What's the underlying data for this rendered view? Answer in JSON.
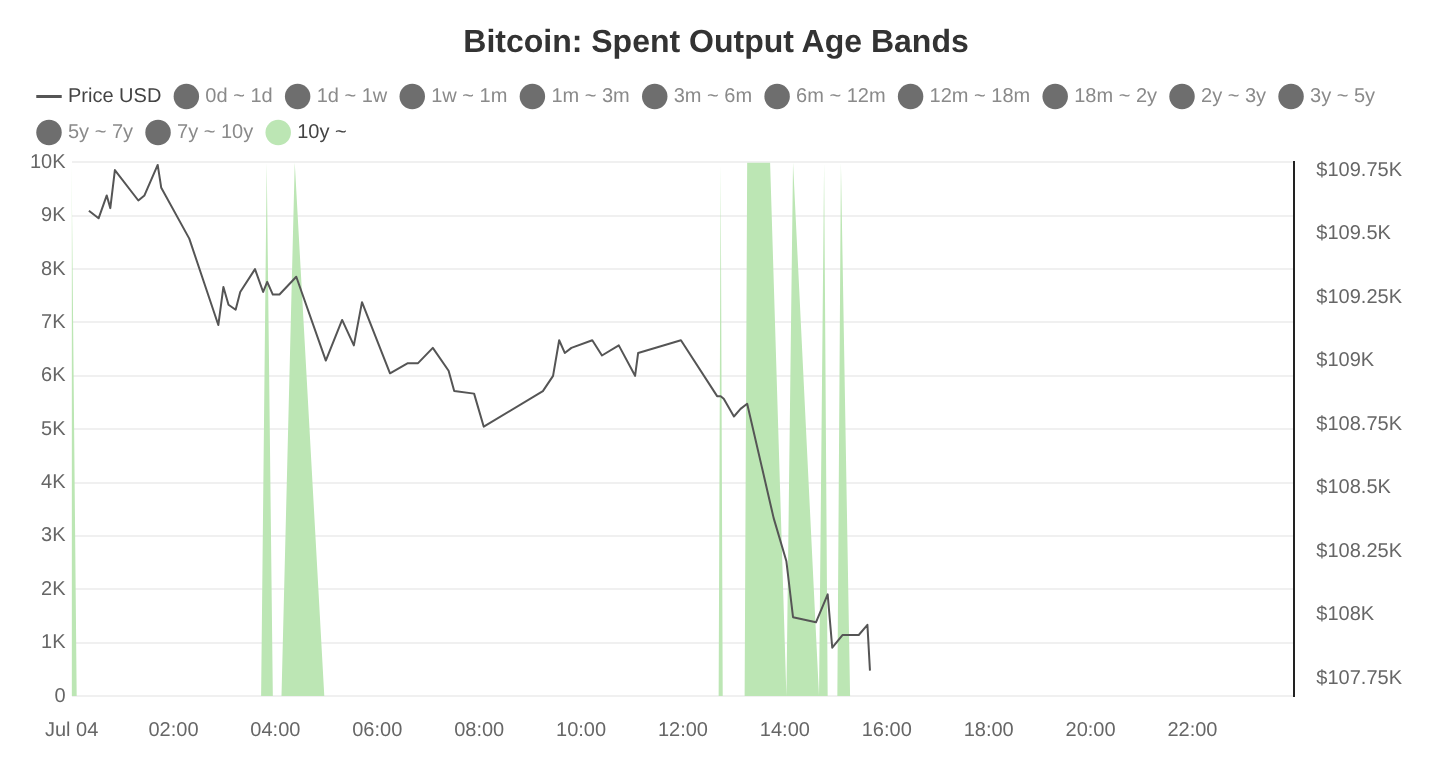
{
  "chart_data": {
    "type": "line",
    "title": "Bitcoin: Spent Output Age Bands",
    "legend": "top left",
    "grid": "y",
    "marker": "none",
    "xlim": [
      0,
      24
    ],
    "xticks": [
      {
        "value": 0,
        "label": "Jul 04"
      },
      {
        "value": 2,
        "label": "02:00"
      },
      {
        "value": 4,
        "label": "04:00"
      },
      {
        "value": 6,
        "label": "06:00"
      },
      {
        "value": 8,
        "label": "08:00"
      },
      {
        "value": 10,
        "label": "10:00"
      },
      {
        "value": 12,
        "label": "12:00"
      },
      {
        "value": 14,
        "label": "14:00"
      },
      {
        "value": 16,
        "label": "16:00"
      },
      {
        "value": 18,
        "label": "18:00"
      },
      {
        "value": 20,
        "label": "20:00"
      },
      {
        "value": 22,
        "label": "22:00"
      }
    ],
    "ylim": [
      0,
      10000
    ],
    "yticks": [
      0,
      {
        "value": 1000,
        "label": "1K"
      },
      {
        "value": 2000,
        "label": "2K"
      },
      {
        "value": 3000,
        "label": "3K"
      },
      {
        "value": 4000,
        "label": "4K"
      },
      {
        "value": 5000,
        "label": "5K"
      },
      {
        "value": 6000,
        "label": "6K"
      },
      {
        "value": 7000,
        "label": "7K"
      },
      {
        "value": 8000,
        "label": "8K"
      },
      {
        "value": 9000,
        "label": "9K"
      },
      {
        "value": 10000,
        "label": "10K"
      }
    ],
    "y2lim": [
      107680,
      109780
    ],
    "y2ticks": [
      {
        "value": 107750,
        "label": "$107.75K"
      },
      {
        "value": 108000,
        "label": "$108K"
      },
      {
        "value": 108250,
        "label": "$108.25K"
      },
      {
        "value": 108500,
        "label": "$108.5K"
      },
      {
        "value": 108750,
        "label": "$108.75K"
      },
      {
        "value": 109000,
        "label": "$109K"
      },
      {
        "value": 109250,
        "label": "$109.25K"
      },
      {
        "value": 109500,
        "label": "$109.5K"
      },
      {
        "value": 109750,
        "label": "$109.75K"
      }
    ],
    "series": [
      {
        "name": "Price USD",
        "type": "line",
        "axis": "y2",
        "color": "#555555",
        "x": [
          0.34,
          0.53,
          0.69,
          0.76,
          0.85,
          1.31,
          1.43,
          1.69,
          1.76,
          2.31,
          2.88,
          2.98,
          3.08,
          3.22,
          3.31,
          3.6,
          3.76,
          3.84,
          3.95,
          4.08,
          4.41,
          4.99,
          5.31,
          5.54,
          5.7,
          6.25,
          6.6,
          6.8,
          7.09,
          7.4,
          7.51,
          7.9,
          8.09,
          9.25,
          9.45,
          9.57,
          9.68,
          9.81,
          10.22,
          10.41,
          10.74,
          11.06,
          11.12,
          11.96,
          12.67,
          12.74,
          12.8,
          13.0,
          13.13,
          13.26,
          13.78,
          14.03,
          14.16,
          14.61,
          14.84,
          14.93,
          15.13,
          15.45,
          15.62,
          15.67
        ],
        "values": [
          109590,
          109560,
          109650,
          109600,
          109750,
          109630,
          109650,
          109770,
          109680,
          109480,
          109140,
          109290,
          109220,
          109200,
          109270,
          109360,
          109270,
          109310,
          109260,
          109260,
          109330,
          109000,
          109160,
          109060,
          109230,
          108950,
          108990,
          108990,
          109050,
          108960,
          108880,
          108870,
          108740,
          108880,
          108940,
          109080,
          109030,
          109050,
          109080,
          109020,
          109060,
          108940,
          109030,
          109080,
          108860,
          108860,
          108850,
          108780,
          108810,
          108830,
          108380,
          108210,
          107990,
          107970,
          108080,
          107870,
          107920,
          107920,
          107960,
          107780
        ]
      },
      {
        "name": "0d ~ 1d",
        "color": "#6e6e6e"
      },
      {
        "name": "1d ~ 1w",
        "color": "#6e6e6e"
      },
      {
        "name": "1w ~ 1m",
        "color": "#6e6e6e"
      },
      {
        "name": "1m ~ 3m",
        "color": "#6e6e6e"
      },
      {
        "name": "3m ~ 6m",
        "color": "#6e6e6e"
      },
      {
        "name": "6m ~ 12m",
        "color": "#6e6e6e"
      },
      {
        "name": "12m ~ 18m",
        "color": "#6e6e6e"
      },
      {
        "name": "18m ~ 2y",
        "color": "#6e6e6e"
      },
      {
        "name": "2y ~ 3y",
        "color": "#6e6e6e"
      },
      {
        "name": "3y ~ 5y",
        "color": "#6e6e6e"
      },
      {
        "name": "5y ~ 7y",
        "color": "#6e6e6e"
      },
      {
        "name": "7y ~ 10y",
        "color": "#6e6e6e"
      },
      {
        "name": "10y ~",
        "type": "area",
        "color": "#bce6b4",
        "x": [
          0,
          0.1,
          3.72,
          3.83,
          3.95,
          4.12,
          4.38,
          4.96,
          12.7,
          12.74,
          12.78,
          13.21,
          13.26,
          13.71,
          14.03,
          14.16,
          14.67,
          14.77,
          14.84,
          15.03,
          15.1,
          15.28,
          15.4
        ],
        "values": [
          10000,
          0,
          0,
          10000,
          0,
          0,
          10000,
          0,
          0,
          10000,
          0,
          0,
          10000,
          10000,
          0,
          10000,
          0,
          10000,
          0,
          0,
          10000,
          0,
          0
        ]
      }
    ]
  }
}
